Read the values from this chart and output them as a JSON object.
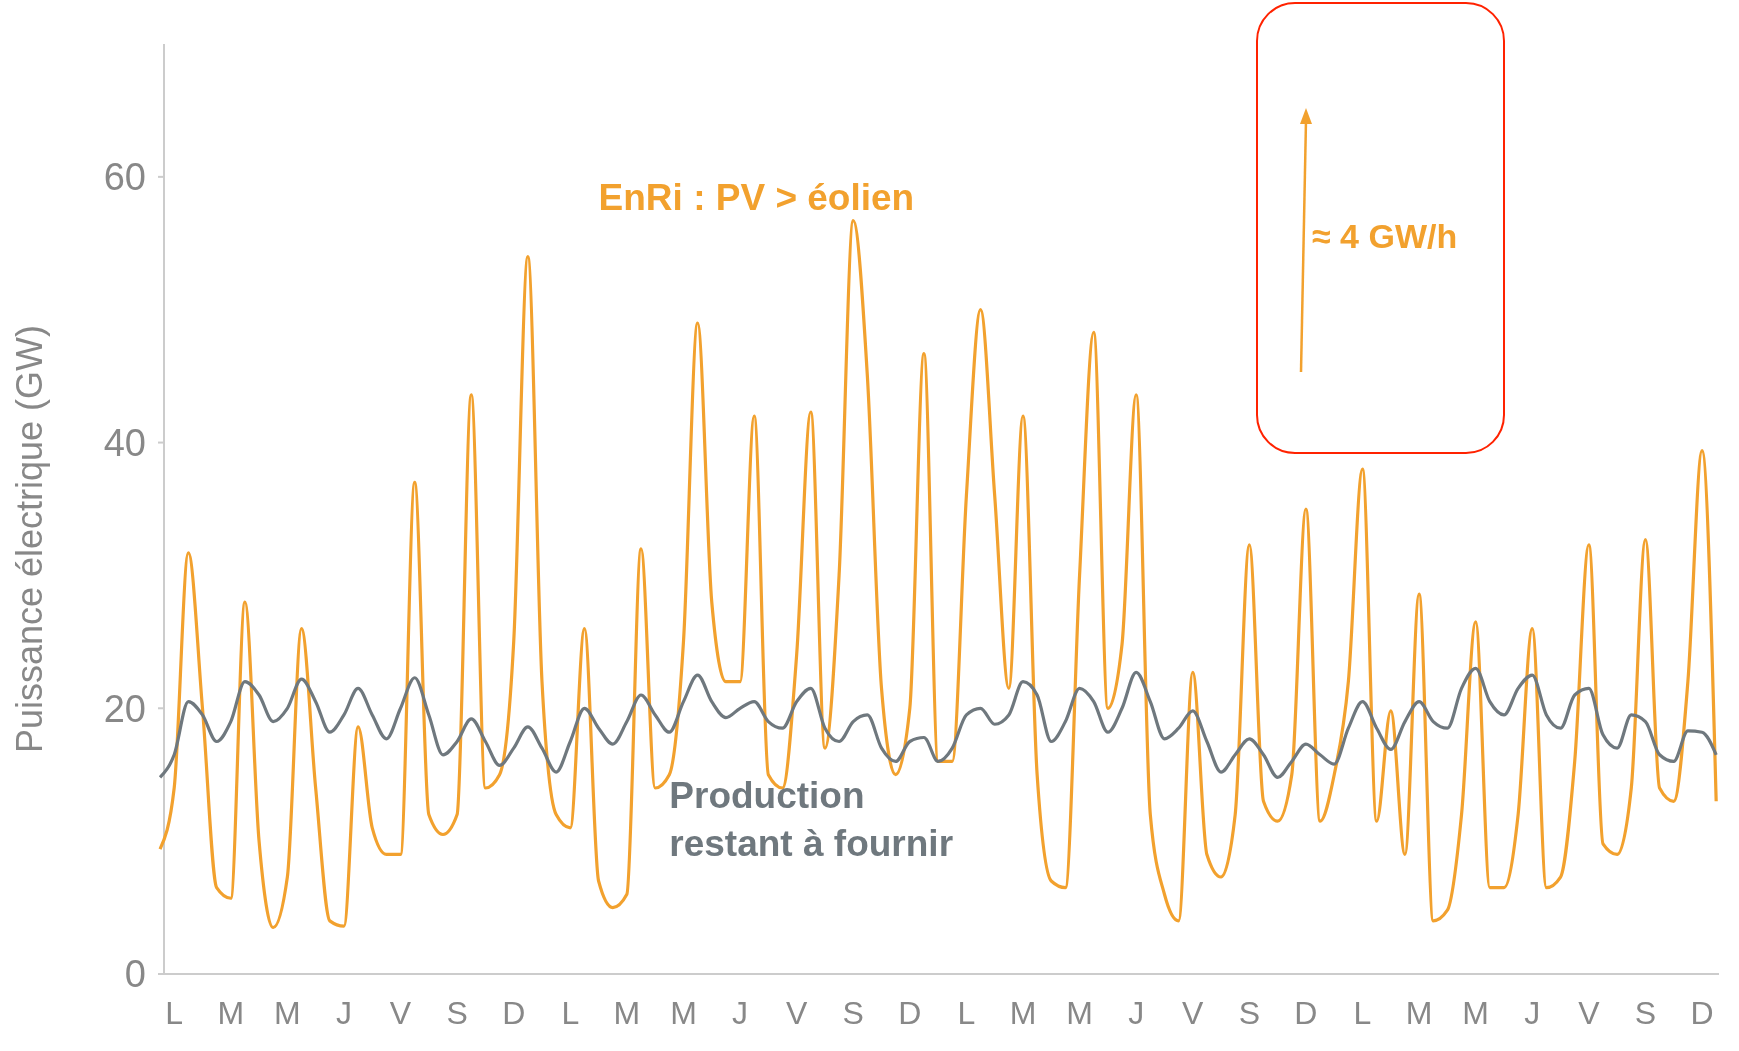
{
  "chart_data": {
    "type": "line",
    "ylabel": "Puissance électrique (GW)",
    "ylim": [
      0,
      70
    ],
    "yticks": [
      0,
      20,
      40,
      60
    ],
    "categories": [
      null,
      "L",
      null,
      null,
      null,
      "M",
      null,
      null,
      null,
      "M",
      null,
      null,
      null,
      "J",
      null,
      null,
      null,
      "V",
      null,
      null,
      null,
      "S",
      null,
      null,
      null,
      "D",
      null,
      null,
      null,
      "L",
      null,
      null,
      null,
      "M",
      null,
      null,
      null,
      "M",
      null,
      null,
      null,
      "J",
      null,
      null,
      null,
      "V",
      null,
      null,
      null,
      "S",
      null,
      null,
      null,
      "D",
      null,
      null,
      null,
      "L",
      null,
      null,
      null,
      "M",
      null,
      null,
      null,
      "M",
      null,
      null,
      null,
      "J",
      null,
      null,
      null,
      "V",
      null,
      null,
      null,
      "S",
      null,
      null,
      null,
      "D",
      null,
      null,
      null,
      "L",
      null,
      null,
      null,
      "M",
      null,
      null,
      null,
      "M",
      null,
      null,
      null,
      "J",
      null,
      null,
      null,
      "V",
      null,
      null,
      null,
      "S",
      null,
      null,
      null,
      "D",
      null
    ],
    "marker": "none",
    "line_style": "solid",
    "legend": false,
    "grid": false,
    "annotations": [
      "≈ 4 GW/h"
    ],
    "series": [
      {
        "name": "EnRi : PV > éolien",
        "color": "#f2a12e",
        "values": [
          9.4,
          14,
          31.7,
          20,
          6.5,
          5.7,
          28,
          10,
          3.5,
          7.3,
          26,
          14,
          4,
          3.6,
          18.6,
          11,
          9,
          9,
          37,
          12,
          10.5,
          12,
          43.6,
          14,
          15,
          25,
          54,
          22,
          12,
          11,
          26,
          7,
          5,
          6,
          32,
          14,
          15,
          25,
          49,
          28,
          22,
          22,
          42,
          15,
          14,
          24,
          42.3,
          17,
          30,
          56.7,
          45,
          21.5,
          15,
          20,
          46.7,
          16,
          16,
          36,
          50,
          36,
          21.5,
          42,
          15,
          7,
          6.5,
          30,
          48.3,
          20,
          24.8,
          43.6,
          12,
          6,
          4,
          22.7,
          9,
          7.3,
          12,
          32.3,
          13,
          11.5,
          15,
          35,
          11.5,
          15,
          22,
          38,
          11.5,
          19.8,
          9,
          28.6,
          4,
          4.8,
          12,
          26.5,
          6.5,
          6.5,
          12,
          26,
          6.5,
          7.3,
          16,
          32.3,
          9.8,
          9,
          14,
          32.7,
          14,
          13,
          22,
          39.4,
          13
        ]
      },
      {
        "name": "Production\nrestant à fournir",
        "color": "#6f787e",
        "values": [
          14.8,
          16.5,
          20.5,
          19.5,
          17.5,
          19,
          22,
          21,
          19,
          20,
          22.2,
          20.5,
          18.2,
          19.5,
          21.5,
          19.5,
          17.7,
          20,
          22.3,
          19.5,
          16.5,
          17.5,
          19.2,
          17.5,
          15.7,
          17,
          18.6,
          17,
          15.2,
          17.5,
          20,
          18.5,
          17.3,
          19,
          21,
          19.5,
          18.2,
          20.5,
          22.5,
          20.5,
          19.3,
          20,
          20.5,
          19,
          18.5,
          20.5,
          21.5,
          18.5,
          17.5,
          19,
          19.5,
          17,
          16,
          17.5,
          17.8,
          16,
          17,
          19.5,
          20,
          18.8,
          19.5,
          22,
          21,
          17.5,
          19,
          21.5,
          20.5,
          18.2,
          20,
          22.7,
          20.5,
          17.7,
          18.5,
          19.8,
          17.5,
          15.2,
          16.5,
          17.7,
          16.5,
          14.8,
          16,
          17.3,
          16.5,
          15.8,
          18.5,
          20.5,
          18.5,
          16.9,
          19,
          20.5,
          19,
          18.5,
          21.5,
          23,
          20.5,
          19.5,
          21.5,
          22.5,
          19.5,
          18.5,
          21,
          21.5,
          18,
          17,
          19.5,
          19,
          16.5,
          16,
          18.3,
          18.2,
          16.5
        ]
      }
    ]
  }
}
